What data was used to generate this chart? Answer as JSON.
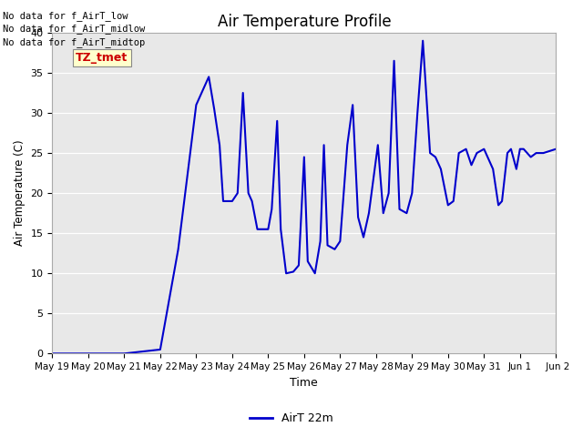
{
  "title": "Air Temperature Profile",
  "xlabel": "Time",
  "ylabel": "Air Temperature (C)",
  "ylim": [
    0,
    40
  ],
  "background_color": "#e8e8e8",
  "line_color": "#0000cc",
  "line_width": 1.5,
  "legend_label": "AirT 22m",
  "no_data_texts": [
    "No data for f_AirT_low",
    "No data for f_AirT_midlow",
    "No data for f_AirT_midtop"
  ],
  "tz_tmet_text": "TZ_tmet",
  "tz_tmet_color": "#cc0000",
  "tz_tmet_bg": "#ffffcc",
  "x_tick_labels": [
    "May 19",
    "May 20",
    "May 21",
    "May 22",
    "May 23",
    "May 24",
    "May 25",
    "May 26",
    "May 27",
    "May 28",
    "May 29",
    "May 30",
    "May 31",
    "Jun 1",
    " Jun 2"
  ],
  "data_x": [
    0,
    1,
    1.05,
    2,
    3,
    3.5,
    4.0,
    4.35,
    4.5,
    4.65,
    4.75,
    5.0,
    5.15,
    5.3,
    5.45,
    5.55,
    5.7,
    6.0,
    6.1,
    6.25,
    6.35,
    6.5,
    6.7,
    6.85,
    7.0,
    7.1,
    7.3,
    7.45,
    7.55,
    7.65,
    7.85,
    8.0,
    8.2,
    8.35,
    8.5,
    8.65,
    8.8,
    9.05,
    9.2,
    9.35,
    9.5,
    9.65,
    9.85,
    10.0,
    10.15,
    10.3,
    10.5,
    10.65,
    10.8,
    11.0,
    11.15,
    11.3,
    11.5,
    11.65,
    11.8,
    12.0,
    12.1,
    12.25,
    12.4,
    12.5,
    12.65,
    12.75,
    12.9,
    13.0,
    13.1,
    13.3,
    13.45,
    13.65,
    14.0
  ],
  "data_y": [
    0,
    0,
    0,
    0,
    0.5,
    13,
    31,
    34.5,
    30.5,
    26,
    19,
    19,
    20,
    32.5,
    20,
    19,
    15.5,
    15.5,
    18,
    29,
    15.5,
    10,
    10.2,
    11,
    24.5,
    11.5,
    10,
    14,
    26,
    13.5,
    13,
    14,
    26,
    31,
    17,
    14.5,
    17.5,
    26,
    17.5,
    20,
    36.5,
    18,
    17.5,
    20,
    30,
    39,
    25,
    24.5,
    23,
    18.5,
    19,
    25,
    25.5,
    23.5,
    25,
    25.5,
    24.5,
    23,
    18.5,
    19,
    25,
    25.5,
    23,
    25.5,
    25.5,
    24.5,
    25,
    25,
    25.5
  ]
}
